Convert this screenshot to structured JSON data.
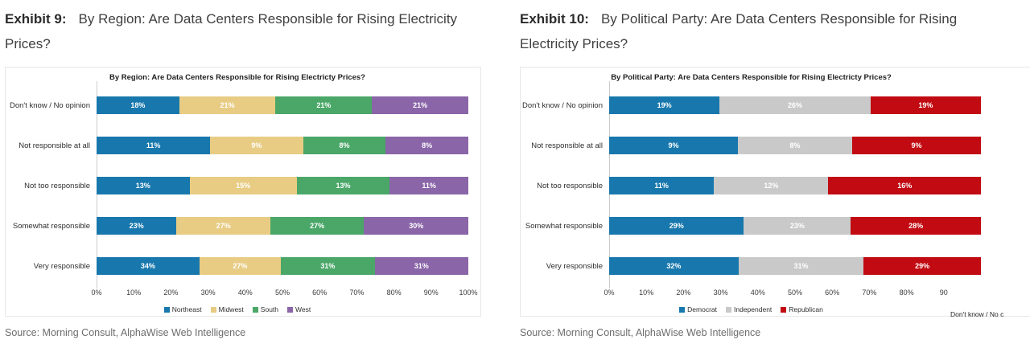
{
  "exhibits": [
    {
      "label": "Exhibit 9:",
      "title": "By Region: Are Data Centers Responsible for Rising Electricity Prices?",
      "source": "Source: Morning Consult, AlphaWise Web Intelligence"
    },
    {
      "label": "Exhibit 10:",
      "title": "By Political Party: Are Data Centers Responsible for Rising Electricity Prices?",
      "source": "Source: Morning Consult, AlphaWise Web Intelligence"
    }
  ],
  "chart_data": [
    {
      "type": "bar",
      "variant": "stacked-100",
      "orientation": "horizontal",
      "title": "By Region: Are Data Centers Responsible for Rising Electricty Prices?",
      "categories": [
        "Don't know / No opinion",
        "Not responsible at all",
        "Not too responsible",
        "Somewhat responsible",
        "Very responsible"
      ],
      "series": [
        {
          "name": "Northeast",
          "color": "#1878ad",
          "values": [
            18,
            11,
            13,
            23,
            34
          ]
        },
        {
          "name": "Midwest",
          "color": "#e8cc84",
          "values": [
            21,
            9,
            15,
            27,
            27
          ]
        },
        {
          "name": "South",
          "color": "#4aa768",
          "values": [
            21,
            8,
            13,
            27,
            31
          ]
        },
        {
          "name": "West",
          "color": "#8a65a8",
          "values": [
            21,
            8,
            11,
            30,
            31
          ]
        }
      ],
      "value_suffix": "%",
      "x_ticks": [
        "0%",
        "10%",
        "20%",
        "30%",
        "40%",
        "50%",
        "60%",
        "70%",
        "80%",
        "90%",
        "100%"
      ],
      "axis_range": [
        0,
        100
      ],
      "legend_position": "bottom",
      "grid": false
    },
    {
      "type": "bar",
      "variant": "stacked-100",
      "orientation": "horizontal",
      "title": "By Political Party: Are Data Centers Responsible for Rising Electricty Prices?",
      "categories": [
        "Don't know / No opinion",
        "Not responsible at all",
        "Not too responsible",
        "Somewhat responsible",
        "Very responsible"
      ],
      "series": [
        {
          "name": "Democrat",
          "color": "#1878ad",
          "values": [
            19,
            9,
            11,
            29,
            32
          ]
        },
        {
          "name": "Independent",
          "color": "#c9c9c9",
          "values": [
            26,
            8,
            12,
            23,
            31
          ]
        },
        {
          "name": "Republican",
          "color": "#c10a11",
          "values": [
            19,
            9,
            16,
            28,
            29
          ]
        }
      ],
      "value_suffix": "%",
      "x_ticks": [
        "0%",
        "10%",
        "20%",
        "30%",
        "40%",
        "50%",
        "60%",
        "70%",
        "80%",
        "90"
      ],
      "axis_range": [
        0,
        100
      ],
      "legend_position": "bottom",
      "grid": false,
      "clipped_label": "Don't know / No c"
    }
  ]
}
